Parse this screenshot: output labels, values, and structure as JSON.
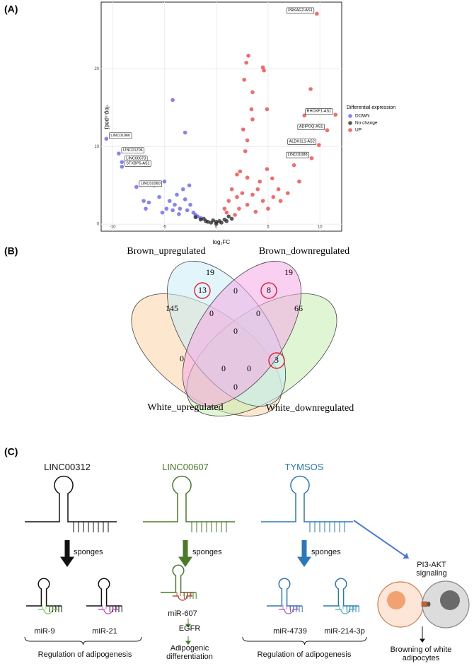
{
  "chart_data": {
    "type": "scatter",
    "panel_label": "(A)",
    "x_label": "log₂FC",
    "y_label": "-log₁₀padj",
    "legend_title": "Differential expression",
    "legend": "right",
    "grid": true,
    "xlim": [
      -11.1,
      12.1
    ],
    "ylim": [
      -0.9,
      28.6
    ],
    "xticks": [
      -10,
      -5,
      0,
      5,
      10
    ],
    "yticks": [
      0,
      10,
      20
    ],
    "series": [
      {
        "name": "DOWN",
        "color": "#5b5bef",
        "x": [
          -10.6,
          -9.4,
          -9.1,
          -9.1,
          -7.7,
          -4.2,
          -3.0,
          -5.0,
          -6.0,
          -5.5,
          -6.5,
          -4.5,
          -4.0,
          -3.5,
          -3.0,
          -2.5,
          -2.8,
          -2.2,
          -2.0,
          -3.8,
          -4.8,
          -5.2,
          -7.0,
          -6.8,
          -3.2,
          -2.6,
          -1.8,
          -1.5,
          -4.2,
          -3.6
        ],
        "values": [
          11.0,
          9.1,
          8.0,
          7.4,
          4.8,
          16.0,
          11.8,
          5.5,
          5.0,
          3.5,
          2.8,
          3.0,
          2.5,
          2.0,
          3.2,
          2.5,
          1.8,
          1.5,
          1.2,
          3.8,
          2.0,
          1.5,
          3.0,
          2.0,
          4.5,
          5.0,
          1.0,
          0.8,
          1.8,
          1.3
        ],
        "point_labels": [
          "LINC01060",
          "LINC01204",
          "LINC00673",
          "STXBP5-AS1",
          "LINC01060",
          null,
          null,
          null,
          null,
          null,
          null,
          null,
          null,
          null,
          null,
          null,
          null,
          null,
          null,
          null,
          null,
          null,
          null,
          null,
          null,
          null,
          null,
          null,
          null,
          null
        ]
      },
      {
        "name": "No change",
        "color": "#222222",
        "x": [
          -2.0,
          -1.5,
          -1.0,
          -0.5,
          0.0,
          0.5,
          1.0,
          1.5,
          -1.2,
          0.8,
          -0.8,
          0.3,
          -0.3,
          1.2,
          0.0
        ],
        "values": [
          0.9,
          0.6,
          0.4,
          0.2,
          0.05,
          0.2,
          0.4,
          0.7,
          0.7,
          0.6,
          0.3,
          0.4,
          0.5,
          1.0,
          0.3
        ]
      },
      {
        "name": "UP",
        "color": "#ef3b3b",
        "x": [
          9.7,
          11.5,
          10.7,
          9.9,
          9.2,
          3.1,
          2.9,
          4.5,
          4.6,
          2.7,
          3.5,
          9.1,
          3.4,
          4.9,
          8.5,
          3.5,
          2.6,
          3.0,
          2.8,
          7.5,
          4.9,
          2.3,
          2.0,
          3.0,
          5.4,
          8.0,
          6.0,
          6.9,
          1.5,
          2.5,
          3.5,
          4.0,
          2.0,
          1.2,
          3.0,
          4.5,
          5.0,
          2.2,
          1.0,
          1.8,
          6.2,
          3.8,
          5.5,
          0.8,
          4.2
        ],
        "values": [
          27.1,
          14.1,
          12.1,
          10.2,
          8.5,
          21.7,
          20.8,
          20.2,
          19.8,
          18.6,
          17.0,
          17.4,
          14.8,
          14.8,
          14.0,
          13.5,
          12.2,
          10.8,
          9.4,
          7.6,
          7.1,
          6.8,
          6.4,
          6.0,
          5.9,
          5.5,
          4.5,
          4.0,
          4.5,
          4.0,
          3.8,
          4.5,
          3.5,
          3.0,
          2.5,
          3.0,
          2.0,
          2.0,
          1.5,
          1.2,
          3.0,
          1.6,
          3.5,
          2.0,
          5.5
        ],
        "point_labels": [
          "PRKAG2-AS1",
          "RHOXF1-AS1",
          "ADIPOQ-AS1",
          "ALDH1L1-AS2",
          "LINC01088",
          null,
          null,
          null,
          null,
          null,
          null,
          null,
          null,
          null,
          null,
          null,
          null,
          null,
          null,
          null,
          null,
          null,
          null,
          null,
          null,
          null,
          null,
          null,
          null,
          null,
          null,
          null,
          null,
          null,
          null,
          null,
          null,
          null,
          null,
          null,
          null,
          null,
          null,
          null,
          null
        ]
      }
    ]
  },
  "venn": {
    "panel_label": "(B)",
    "sets": [
      "Brown_upregulated",
      "Brown_downregulated",
      "White_upregulated",
      "White_downregulated"
    ],
    "counts": [
      19,
      19,
      145,
      66,
      13,
      8,
      0,
      0,
      0,
      0,
      0,
      3,
      0,
      0,
      0
    ],
    "circled": [
      false,
      false,
      false,
      false,
      true,
      true,
      false,
      false,
      false,
      false,
      false,
      true,
      false,
      false,
      false
    ]
  },
  "diagram": {
    "panel_label": "(C)",
    "columns": [
      {
        "lncrna": "LINC00312",
        "action": "sponges",
        "mirnas": [
          "miR-9",
          "miR-21"
        ],
        "outcome": "Regulation of adipogenesis"
      },
      {
        "lncrna": "LINC00607",
        "action": "sponges",
        "mirnas": [
          "miR-607"
        ],
        "target": "EGFR",
        "outcome": "Adipogenic differentiation"
      },
      {
        "lncrna": "TYMSOS",
        "action": "sponges",
        "mirnas": [
          "miR-4739",
          "miR-214-3p"
        ],
        "outcome": "Regulation of adipogenesis"
      }
    ],
    "pathway": "PI3-AKT signaling",
    "result": "Browning of white adipocytes"
  }
}
